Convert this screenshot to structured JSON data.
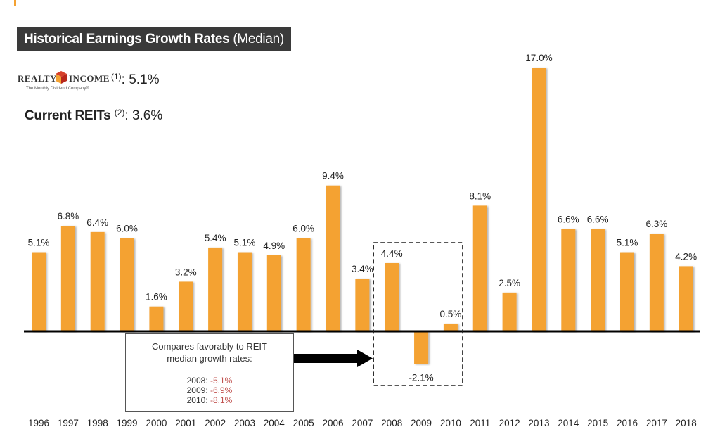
{
  "header": {
    "title_main": "Historical Earnings Growth Rates",
    "title_sub": "(Median)"
  },
  "realty_income": {
    "logo_word_left": "REALTY",
    "logo_word_right": "INCOME",
    "tagline": "The Monthly Dividend Company®",
    "footnote": "(1)",
    "value": ": 5.1%"
  },
  "current_reits": {
    "label": "Current REITs",
    "footnote": "(2)",
    "value": ": 3.6%"
  },
  "callout": {
    "line1": "Compares favorably to REIT",
    "line2": "median growth rates:",
    "rows": [
      {
        "year": "2008:",
        "value": "-5.1%"
      },
      {
        "year": "2009:",
        "value": "-6.9%"
      },
      {
        "year": "2010:",
        "value": "-8.1%"
      }
    ]
  },
  "colors": {
    "bar": "#f4a232",
    "title_bg": "#3a3a3a",
    "negative_text": "#c0504d"
  },
  "chart_data": {
    "type": "bar",
    "title": "Historical Earnings Growth Rates (Median)",
    "xlabel": "",
    "ylabel": "",
    "ylim": [
      -2.1,
      17.0
    ],
    "grid": false,
    "legend": "none",
    "categories": [
      "1996",
      "1997",
      "1998",
      "1999",
      "2000",
      "2001",
      "2002",
      "2003",
      "2004",
      "2005",
      "2006",
      "2007",
      "2008",
      "2009",
      "2010",
      "2011",
      "2012",
      "2013",
      "2014",
      "2015",
      "2016",
      "2017",
      "2018"
    ],
    "values": [
      5.1,
      6.8,
      6.4,
      6.0,
      1.6,
      3.2,
      5.4,
      5.1,
      4.9,
      6.0,
      9.4,
      3.4,
      4.4,
      -2.1,
      0.5,
      8.1,
      2.5,
      17.0,
      6.6,
      6.6,
      5.1,
      6.3,
      4.2
    ],
    "data_labels": [
      "5.1%",
      "6.8%",
      "6.4%",
      "6.0%",
      "1.6%",
      "3.2%",
      "5.4%",
      "5.1%",
      "4.9%",
      "6.0%",
      "9.4%",
      "3.4%",
      "4.4%",
      "-2.1%",
      "0.5%",
      "8.1%",
      "2.5%",
      "17.0%",
      "6.6%",
      "6.6%",
      "5.1%",
      "6.3%",
      "4.2%"
    ],
    "highlight_range": [
      "2008",
      "2010"
    ],
    "annotation": "Compares favorably to REIT median growth rates: 2008: -5.1%, 2009: -6.9%, 2010: -8.1%"
  }
}
